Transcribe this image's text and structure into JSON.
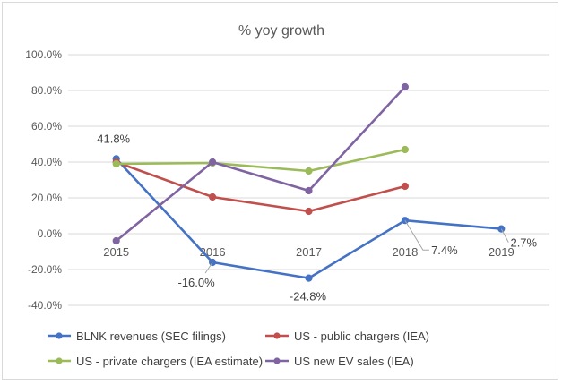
{
  "chart_data": {
    "type": "line",
    "title": "% yoy growth",
    "xlabel": "",
    "ylabel": "",
    "categories": [
      "2015",
      "2016",
      "2017",
      "2018",
      "2019"
    ],
    "y_ticks": [
      "100.0%",
      "80.0%",
      "60.0%",
      "40.0%",
      "20.0%",
      "0.0%",
      "-20.0%",
      "-40.0%"
    ],
    "y_tick_values": [
      100,
      80,
      60,
      40,
      20,
      0,
      -20,
      -40
    ],
    "ylim": [
      -40,
      100
    ],
    "grid": true,
    "legend_position": "bottom",
    "series": [
      {
        "name": "BLNK revenues (SEC filings)",
        "color": "#4472C4",
        "values": [
          41.8,
          -16.0,
          -24.8,
          7.4,
          2.7
        ],
        "labels": [
          "41.8%",
          "-16.0%",
          "-24.8%",
          "7.4%",
          "2.7%"
        ]
      },
      {
        "name": "US - public chargers (IEA)",
        "color": "#C0504D",
        "values": [
          40,
          20.5,
          12.5,
          26.5,
          null
        ]
      },
      {
        "name": "US - private chargers (IEA estimate)",
        "color": "#9BBB59",
        "values": [
          39,
          39.5,
          35,
          47,
          null
        ]
      },
      {
        "name": "US new EV sales (IEA)",
        "color": "#8064A2",
        "values": [
          -4,
          40,
          24,
          82,
          null
        ]
      }
    ]
  }
}
